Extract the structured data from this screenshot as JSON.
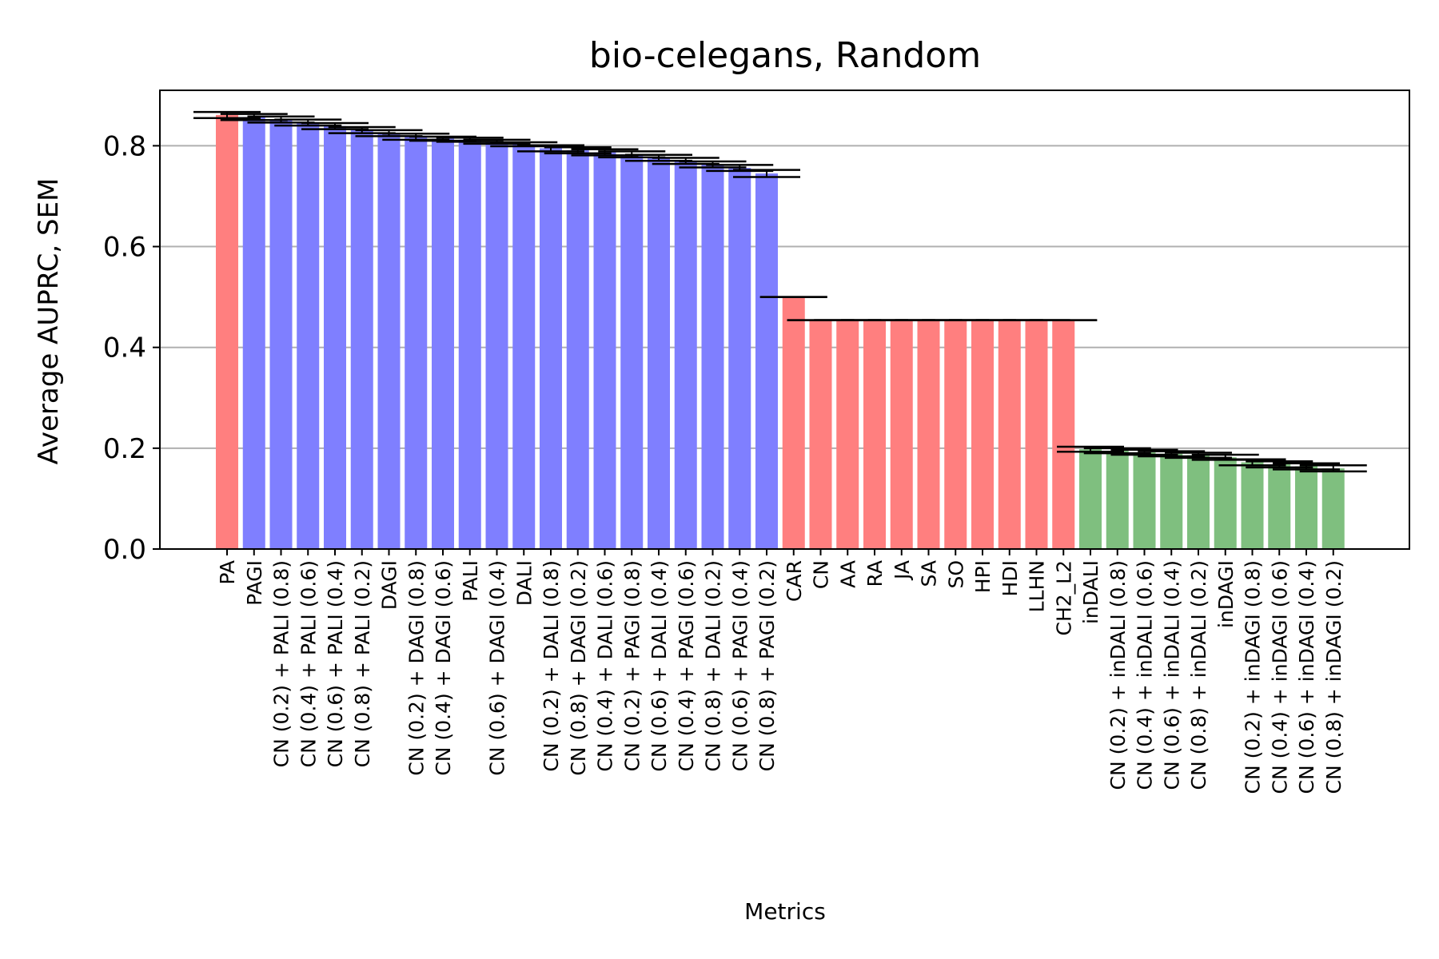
{
  "chart_data": {
    "type": "bar",
    "title": "bio-celegans, Random",
    "xlabel": "Metrics",
    "ylabel": "Average AUPRC, SEM",
    "ylim": [
      0,
      0.91
    ],
    "yticks": [
      "0.0",
      "0.2",
      "0.4",
      "0.6",
      "0.8"
    ],
    "grid": "horizontal",
    "legend": "none",
    "colors": {
      "red": "#ff7f7f",
      "blue": "#7f7fff",
      "green": "#7fbf7f",
      "errorbar": "#000000",
      "grid": "#b0b0b0"
    },
    "categories": [
      "PA",
      "PAGI",
      "CN (0.2) + PALI (0.8)",
      "CN (0.4) + PALI (0.6)",
      "CN (0.6) + PALI (0.4)",
      "CN (0.8) + PALI (0.2)",
      "DAGI",
      "CN (0.2) + DAGI (0.8)",
      "CN (0.4) + DAGI (0.6)",
      "PALI",
      "CN (0.6) + DAGI (0.4)",
      "DALI",
      "CN (0.2) + DALI (0.8)",
      "CN (0.8) + DAGI (0.2)",
      "CN (0.4) + DALI (0.6)",
      "CN (0.2) + PAGI (0.8)",
      "CN (0.6) + DALI (0.4)",
      "CN (0.4) + PAGI (0.6)",
      "CN (0.8) + DALI (0.2)",
      "CN (0.6) + PAGI (0.4)",
      "CN (0.8) + PAGI (0.2)",
      "CAR",
      "CN",
      "AA",
      "RA",
      "JA",
      "SA",
      "SO",
      "HPI",
      "HDI",
      "LLHN",
      "CH2_L2",
      "inDALI",
      "CN (0.2) + inDALI (0.8)",
      "CN (0.4) + inDALI (0.6)",
      "CN (0.6) + inDALI (0.4)",
      "CN (0.8) + inDALI (0.2)",
      "inDAGI",
      "CN (0.2) + inDAGI (0.8)",
      "CN (0.4) + inDAGI (0.6)",
      "CN (0.6) + inDAGI (0.4)",
      "CN (0.8) + inDAGI (0.2)"
    ],
    "values": [
      0.861,
      0.857,
      0.852,
      0.846,
      0.839,
      0.831,
      0.825,
      0.818,
      0.814,
      0.812,
      0.808,
      0.803,
      0.795,
      0.791,
      0.787,
      0.783,
      0.776,
      0.77,
      0.763,
      0.756,
      0.745,
      0.5,
      0.454,
      0.454,
      0.454,
      0.454,
      0.454,
      0.454,
      0.454,
      0.454,
      0.454,
      0.454,
      0.198,
      0.195,
      0.192,
      0.189,
      0.186,
      0.182,
      0.172,
      0.168,
      0.164,
      0.16
    ],
    "errors": [
      0.006,
      0.006,
      0.006,
      0.006,
      0.006,
      0.006,
      0.006,
      0.006,
      0.004,
      0.004,
      0.004,
      0.004,
      0.006,
      0.006,
      0.006,
      0.006,
      0.006,
      0.006,
      0.006,
      0.006,
      0.007,
      0.0,
      0.0,
      0.0,
      0.0,
      0.0,
      0.0,
      0.0,
      0.0,
      0.0,
      0.0,
      0.0,
      0.005,
      0.005,
      0.005,
      0.005,
      0.005,
      0.005,
      0.006,
      0.006,
      0.006,
      0.006
    ],
    "bar_colors": [
      "red",
      "blue",
      "blue",
      "blue",
      "blue",
      "blue",
      "blue",
      "blue",
      "blue",
      "blue",
      "blue",
      "blue",
      "blue",
      "blue",
      "blue",
      "blue",
      "blue",
      "blue",
      "blue",
      "blue",
      "blue",
      "red",
      "red",
      "red",
      "red",
      "red",
      "red",
      "red",
      "red",
      "red",
      "red",
      "red",
      "green",
      "green",
      "green",
      "green",
      "green",
      "green",
      "green",
      "green",
      "green",
      "green"
    ]
  }
}
